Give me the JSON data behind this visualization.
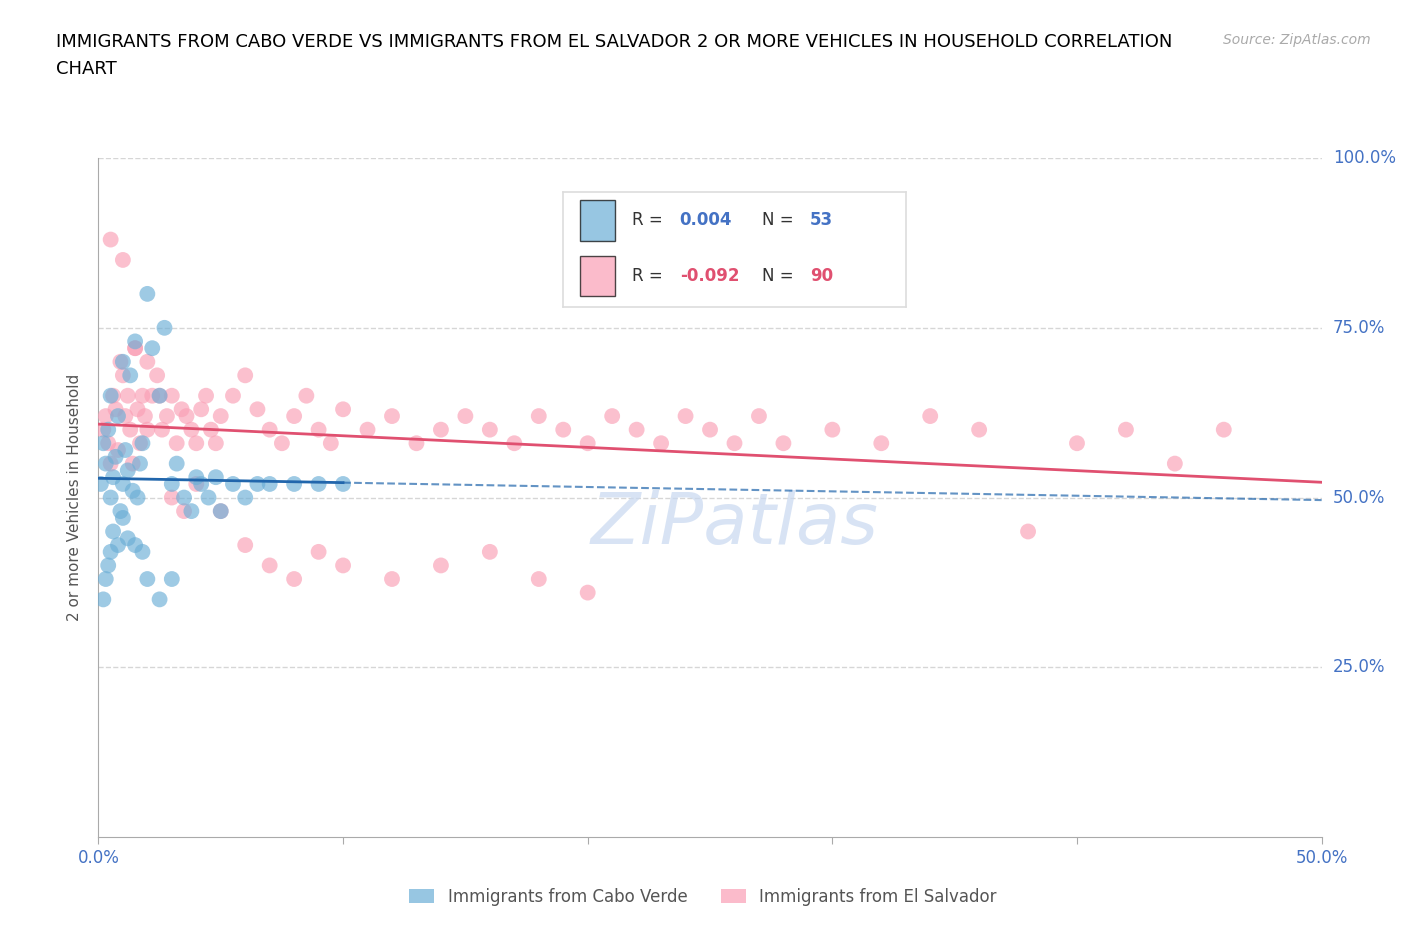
{
  "title_line1": "IMMIGRANTS FROM CABO VERDE VS IMMIGRANTS FROM EL SALVADOR 2 OR MORE VEHICLES IN HOUSEHOLD CORRELATION",
  "title_line2": "CHART",
  "source": "Source: ZipAtlas.com",
  "ylabel": "2 or more Vehicles in Household",
  "xlim": [
    0.0,
    0.5
  ],
  "ylim": [
    0.0,
    1.0
  ],
  "xtick_positions": [
    0.0,
    0.1,
    0.2,
    0.3,
    0.4,
    0.5
  ],
  "xtick_labels": [
    "0.0%",
    "",
    "",
    "",
    "",
    "50.0%"
  ],
  "yticks": [
    0.0,
    0.25,
    0.5,
    0.75,
    1.0
  ],
  "right_ytick_labels": [
    "",
    "25.0%",
    "50.0%",
    "75.0%",
    "100.0%"
  ],
  "cabo_verde_color": "#6baed6",
  "cabo_verde_line_color": "#2166ac",
  "el_salvador_color": "#fa9fb5",
  "el_salvador_line_color": "#e05070",
  "cabo_verde_R": 0.004,
  "cabo_verde_N": 53,
  "el_salvador_R": -0.092,
  "el_salvador_N": 90,
  "cabo_verde_x": [
    0.001,
    0.002,
    0.003,
    0.004,
    0.005,
    0.005,
    0.006,
    0.007,
    0.008,
    0.009,
    0.01,
    0.01,
    0.011,
    0.012,
    0.013,
    0.014,
    0.015,
    0.016,
    0.017,
    0.018,
    0.02,
    0.022,
    0.025,
    0.027,
    0.03,
    0.032,
    0.035,
    0.038,
    0.04,
    0.042,
    0.045,
    0.048,
    0.05,
    0.055,
    0.06,
    0.065,
    0.07,
    0.08,
    0.09,
    0.1,
    0.002,
    0.003,
    0.004,
    0.005,
    0.006,
    0.008,
    0.01,
    0.012,
    0.015,
    0.018,
    0.02,
    0.025,
    0.03
  ],
  "cabo_verde_y": [
    0.52,
    0.58,
    0.55,
    0.6,
    0.5,
    0.65,
    0.53,
    0.56,
    0.62,
    0.48,
    0.7,
    0.52,
    0.57,
    0.54,
    0.68,
    0.51,
    0.73,
    0.5,
    0.55,
    0.58,
    0.8,
    0.72,
    0.65,
    0.75,
    0.52,
    0.55,
    0.5,
    0.48,
    0.53,
    0.52,
    0.5,
    0.53,
    0.48,
    0.52,
    0.5,
    0.52,
    0.52,
    0.52,
    0.52,
    0.52,
    0.35,
    0.38,
    0.4,
    0.42,
    0.45,
    0.43,
    0.47,
    0.44,
    0.43,
    0.42,
    0.38,
    0.35,
    0.38
  ],
  "el_salvador_x": [
    0.002,
    0.003,
    0.004,
    0.005,
    0.006,
    0.007,
    0.008,
    0.009,
    0.01,
    0.011,
    0.012,
    0.013,
    0.014,
    0.015,
    0.016,
    0.017,
    0.018,
    0.019,
    0.02,
    0.022,
    0.024,
    0.026,
    0.028,
    0.03,
    0.032,
    0.034,
    0.036,
    0.038,
    0.04,
    0.042,
    0.044,
    0.046,
    0.048,
    0.05,
    0.055,
    0.06,
    0.065,
    0.07,
    0.075,
    0.08,
    0.085,
    0.09,
    0.095,
    0.1,
    0.11,
    0.12,
    0.13,
    0.14,
    0.15,
    0.16,
    0.17,
    0.18,
    0.19,
    0.2,
    0.21,
    0.22,
    0.23,
    0.24,
    0.25,
    0.26,
    0.27,
    0.28,
    0.3,
    0.32,
    0.34,
    0.36,
    0.38,
    0.4,
    0.42,
    0.44,
    0.46,
    0.005,
    0.01,
    0.015,
    0.02,
    0.025,
    0.03,
    0.035,
    0.04,
    0.05,
    0.06,
    0.07,
    0.08,
    0.09,
    0.1,
    0.12,
    0.14,
    0.16,
    0.18,
    0.2
  ],
  "el_salvador_y": [
    0.6,
    0.62,
    0.58,
    0.55,
    0.65,
    0.63,
    0.57,
    0.7,
    0.68,
    0.62,
    0.65,
    0.6,
    0.55,
    0.72,
    0.63,
    0.58,
    0.65,
    0.62,
    0.6,
    0.65,
    0.68,
    0.6,
    0.62,
    0.65,
    0.58,
    0.63,
    0.62,
    0.6,
    0.58,
    0.63,
    0.65,
    0.6,
    0.58,
    0.62,
    0.65,
    0.68,
    0.63,
    0.6,
    0.58,
    0.62,
    0.65,
    0.6,
    0.58,
    0.63,
    0.6,
    0.62,
    0.58,
    0.6,
    0.62,
    0.6,
    0.58,
    0.62,
    0.6,
    0.58,
    0.62,
    0.6,
    0.58,
    0.62,
    0.6,
    0.58,
    0.62,
    0.58,
    0.6,
    0.58,
    0.62,
    0.6,
    0.45,
    0.58,
    0.6,
    0.55,
    0.6,
    0.88,
    0.85,
    0.72,
    0.7,
    0.65,
    0.5,
    0.48,
    0.52,
    0.48,
    0.43,
    0.4,
    0.38,
    0.42,
    0.4,
    0.38,
    0.4,
    0.42,
    0.38,
    0.36
  ],
  "background_color": "#ffffff",
  "grid_color": "#cccccc",
  "axis_color": "#4472C4",
  "title_color": "#000000",
  "watermark_text": "ZiPatlas",
  "watermark_color": "#c8d8f0",
  "legend_box_color": "#dddddd"
}
